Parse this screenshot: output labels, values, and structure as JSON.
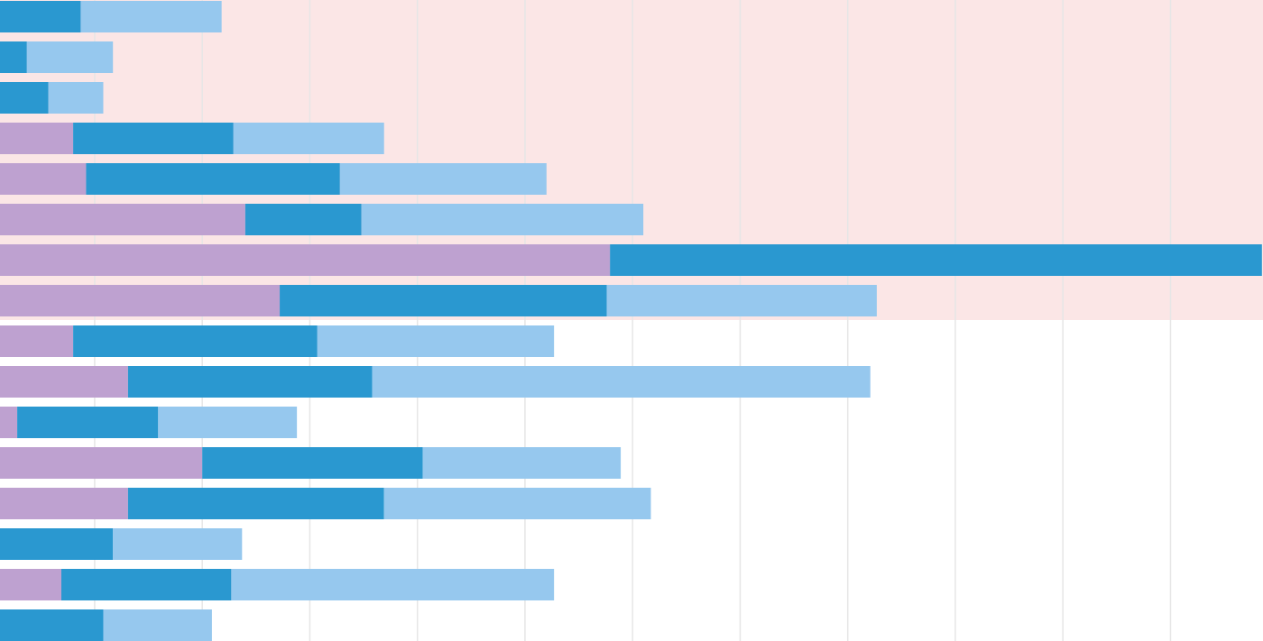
{
  "chart_data": {
    "type": "stacked-bar-horizontal",
    "categories": [
      null,
      null,
      null,
      null,
      null,
      null,
      null,
      null,
      null,
      null,
      null,
      null,
      null,
      null,
      null,
      null
    ],
    "series": [
      {
        "color": "#bea1d0",
        "values": [
          null,
          null,
          null,
          6.8,
          8.0,
          22.8,
          56.7,
          26.0,
          6.8,
          11.9,
          1.6,
          18.8,
          11.9,
          null,
          5.7,
          null
        ]
      },
      {
        "color": "#2a98d0",
        "values": [
          7.5,
          2.5,
          4.5,
          14.9,
          23.6,
          10.8,
          60.6,
          30.4,
          22.7,
          22.7,
          13.1,
          20.5,
          23.8,
          10.5,
          15.8,
          9.6
        ]
      },
      {
        "color": "#96c8ee",
        "values": [
          13.1,
          8.0,
          5.1,
          14.0,
          19.2,
          26.2,
          null,
          25.1,
          22.0,
          46.3,
          12.9,
          18.4,
          24.8,
          12.0,
          30.0,
          10.1
        ]
      }
    ],
    "xlim": [
      0,
      117.4
    ],
    "xticks": [
      8.8,
      18.8,
      28.8,
      38.8,
      48.8,
      58.8,
      68.8,
      78.8,
      88.8,
      98.8,
      108.8
    ],
    "grid": true
  }
}
